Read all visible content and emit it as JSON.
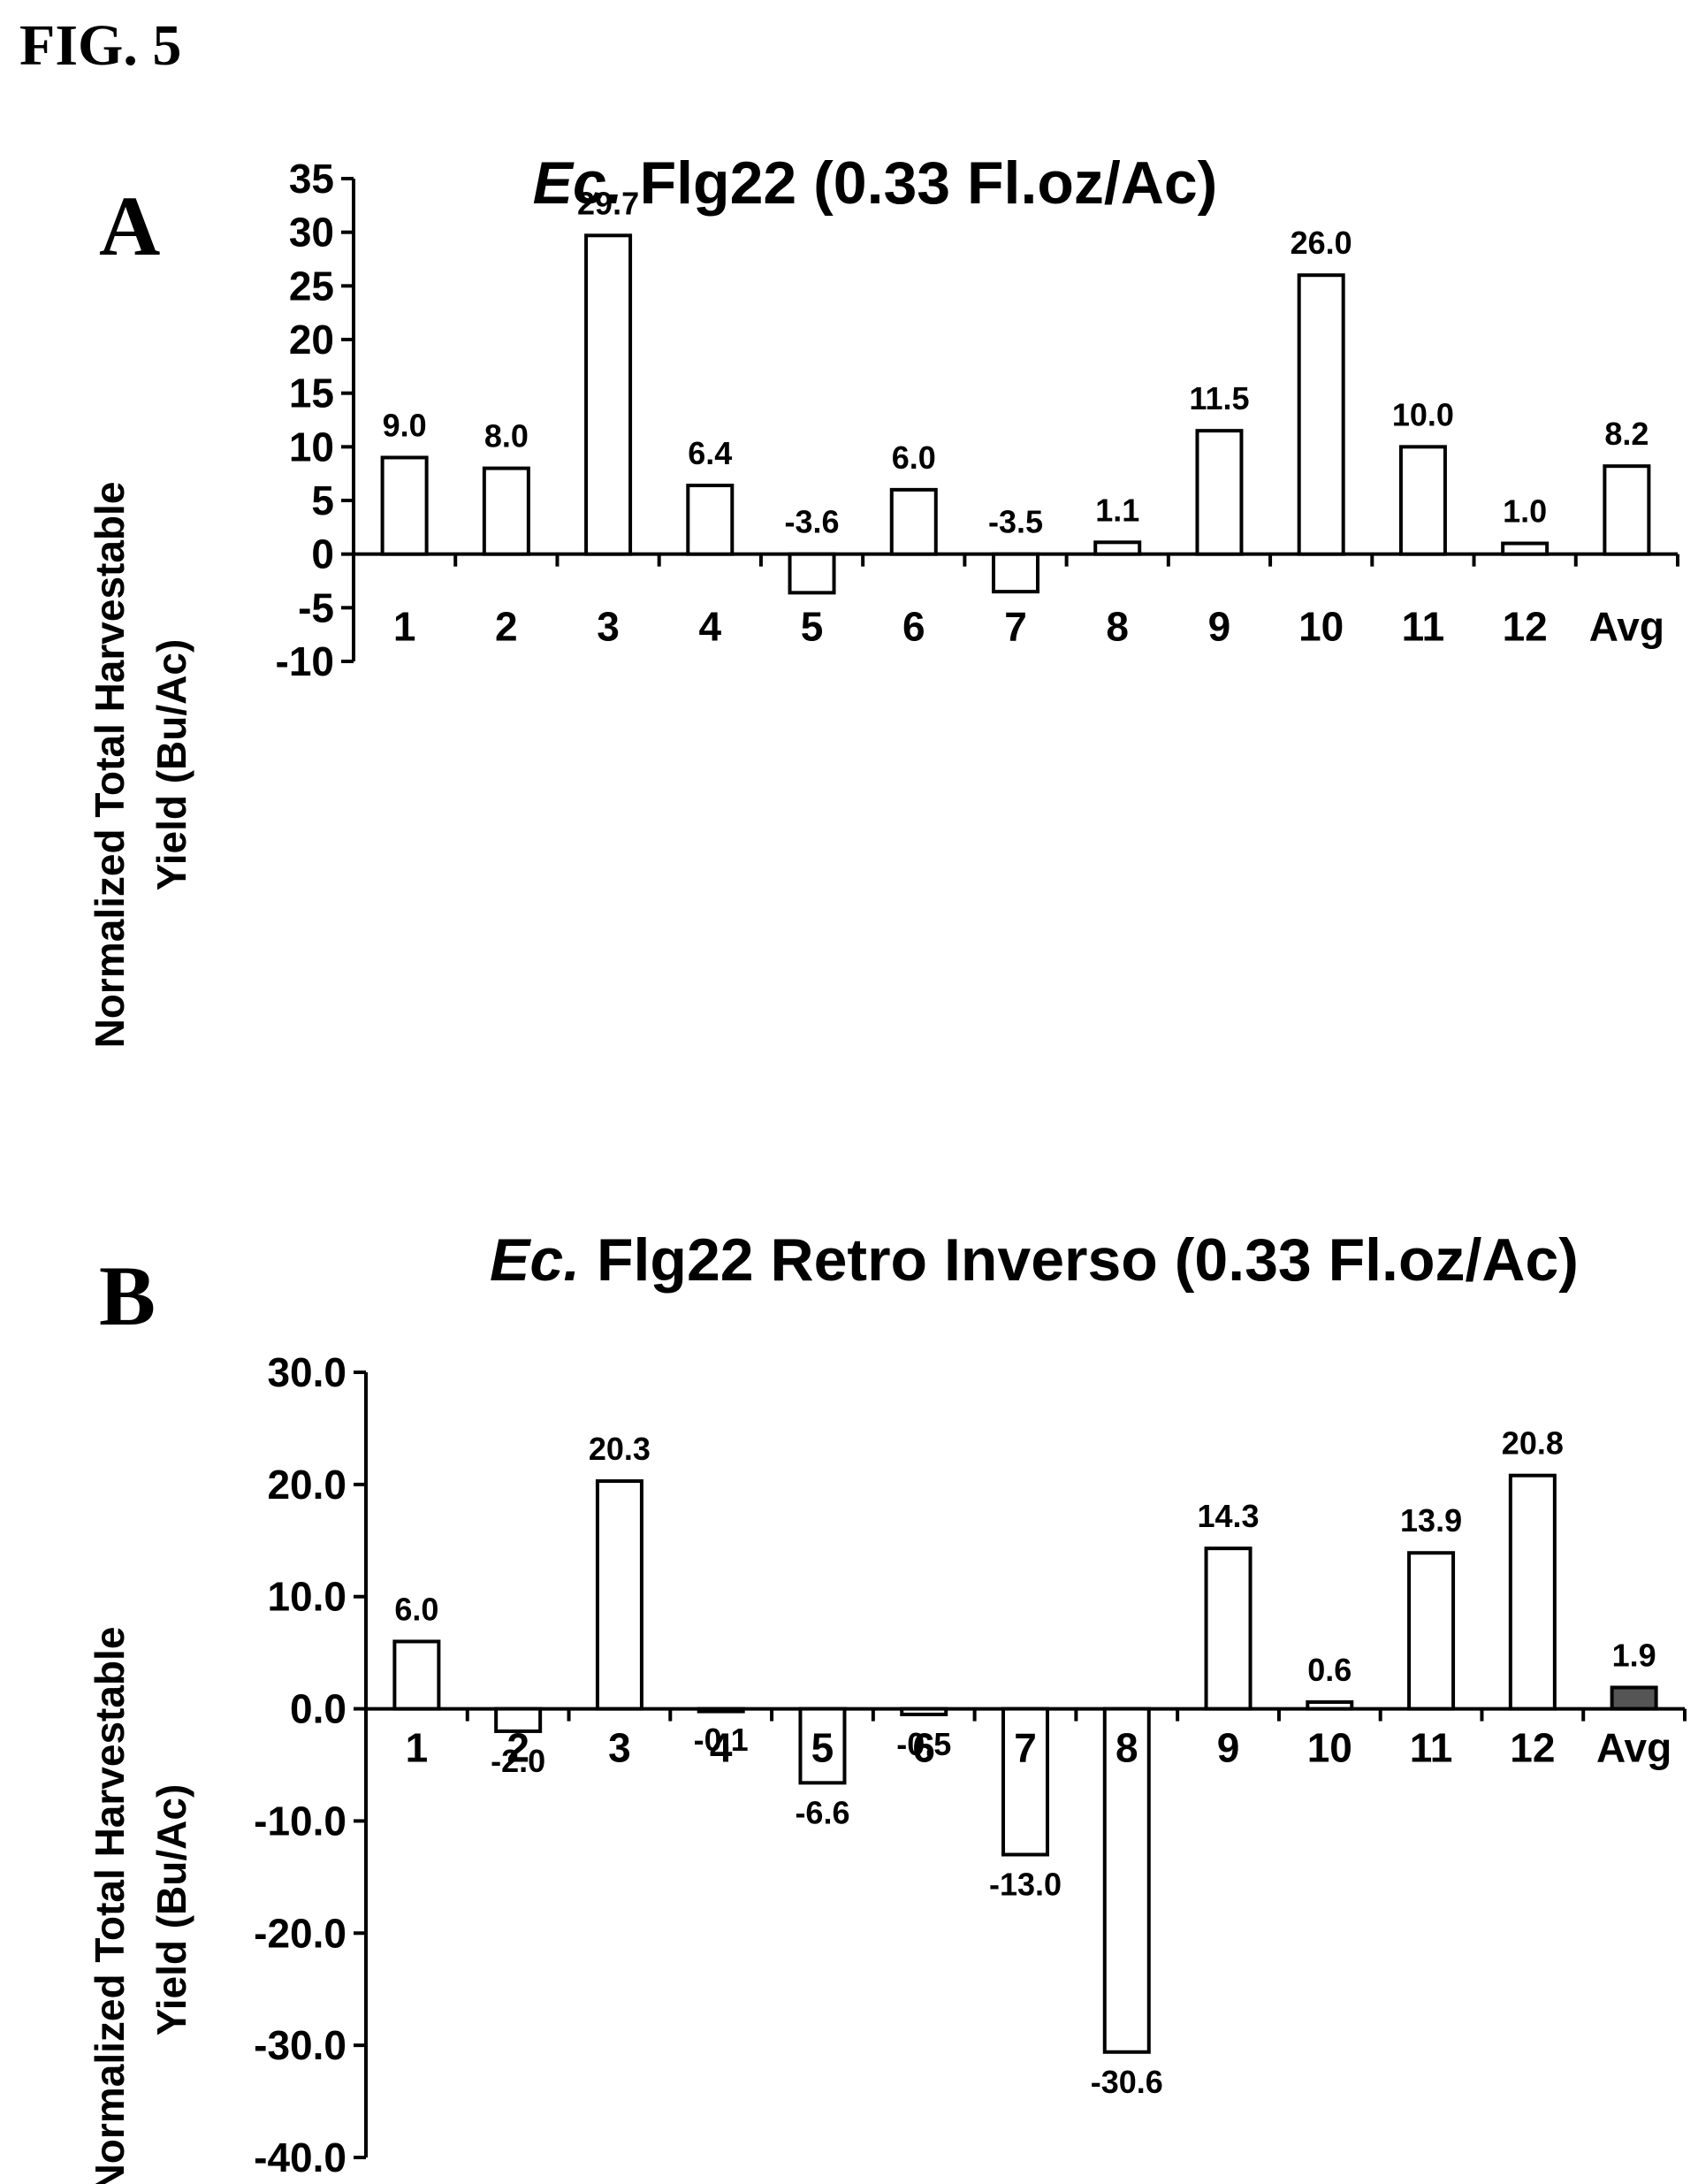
{
  "figure_label": "FIG. 5",
  "panels": [
    {
      "letter": "A",
      "title_italic": "Ec.",
      "title_rest": " Flg22 (0.33 Fl.oz/Ac)"
    },
    {
      "letter": "B",
      "title_italic": "Ec.",
      "title_rest": " Flg22  Retro Inverso (0.33 Fl.oz/Ac)"
    }
  ],
  "chart_data": [
    {
      "type": "bar",
      "title": "Ec. Flg22 (0.33 Fl.oz/Ac)",
      "ylabel": [
        "Normalized Total Harvestable",
        "Yield  (Bu/Ac)"
      ],
      "ylim": [
        -10,
        35
      ],
      "yticks": [
        35,
        30,
        25,
        20,
        15,
        10,
        5,
        0,
        -5,
        -10
      ],
      "ytick_labels": [
        "35",
        "30",
        "25",
        "20",
        "15",
        "10",
        "5",
        "0",
        "-5",
        "-10"
      ],
      "categories": [
        "1",
        "2",
        "3",
        "4",
        "5",
        "6",
        "7",
        "8",
        "9",
        "10",
        "11",
        "12",
        "Avg"
      ],
      "values": [
        9.0,
        8.0,
        29.7,
        6.4,
        -3.6,
        6.0,
        -3.5,
        1.1,
        11.5,
        26.0,
        10.0,
        1.0,
        8.2
      ],
      "data_labels": [
        "9.0",
        "8.0",
        "29.7",
        "6.4",
        "-3.6",
        "6.0",
        "-3.5",
        "1.1",
        "11.5",
        "26.0",
        "10.0",
        "1.0",
        "8.2"
      ],
      "bar_fills": [
        "#ffffff",
        "#ffffff",
        "#ffffff",
        "#ffffff",
        "#ffffff",
        "#ffffff",
        "#ffffff",
        "#ffffff",
        "#ffffff",
        "#ffffff",
        "#ffffff",
        "#ffffff",
        "#ffffff"
      ],
      "category_labels_position": "below axis",
      "grid": false
    },
    {
      "type": "bar",
      "title": "Ec. Flg22  Retro Inverso (0.33 Fl.oz/Ac)",
      "ylabel": [
        "Normalized Total Harvestable",
        "Yield (Bu/Ac)"
      ],
      "ylim": [
        -40,
        30
      ],
      "yticks": [
        30,
        20,
        10,
        0,
        -10,
        -20,
        -30,
        -40
      ],
      "ytick_labels": [
        "30.0",
        "20.0",
        "10.0",
        "0.0",
        "-10.0",
        "-20.0",
        "-30.0",
        "-40.0"
      ],
      "categories": [
        "1",
        "2",
        "3",
        "4",
        "5",
        "6",
        "7",
        "8",
        "9",
        "10",
        "11",
        "12",
        "Avg"
      ],
      "values": [
        6.0,
        -2.0,
        20.3,
        -0.1,
        -6.6,
        -0.5,
        -13.0,
        -30.6,
        14.3,
        0.6,
        13.9,
        20.8,
        1.9
      ],
      "data_labels": [
        "6.0",
        "-2.0",
        "20.3",
        "-0.1",
        "-6.6",
        "-0.5",
        "-13.0",
        "-30.6",
        "14.3",
        "0.6",
        "13.9",
        "20.8",
        "1.9"
      ],
      "bar_fills": [
        "#ffffff",
        "#ffffff",
        "#ffffff",
        "#ffffff",
        "#ffffff",
        "#ffffff",
        "#ffffff",
        "#ffffff",
        "#ffffff",
        "#ffffff",
        "#ffffff",
        "#ffffff",
        "#555555"
      ],
      "category_labels_position": "just below zero line",
      "grid": false
    }
  ]
}
